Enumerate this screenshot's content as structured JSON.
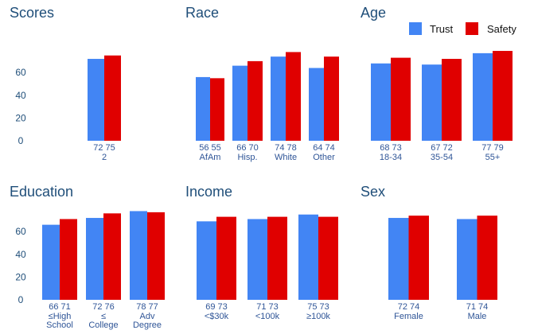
{
  "colors": {
    "trust": "#4285f4",
    "safety": "#e00000",
    "text": "#1f4e79"
  },
  "legend": {
    "items": [
      "Trust",
      "Safety"
    ],
    "placement": "top-right"
  },
  "chart_data": [
    {
      "type": "bar",
      "title": "Scores",
      "categories": [
        "2"
      ],
      "series": [
        {
          "name": "Trust",
          "values": [
            72
          ]
        },
        {
          "name": "Safety",
          "values": [
            75
          ]
        }
      ],
      "ylim": [
        0,
        80
      ],
      "yticks": [
        0,
        20,
        40,
        60
      ]
    },
    {
      "type": "bar",
      "title": "Race",
      "categories": [
        "AfAm",
        "Hisp.",
        "White",
        "Other"
      ],
      "series": [
        {
          "name": "Trust",
          "values": [
            56,
            66,
            74,
            64
          ]
        },
        {
          "name": "Safety",
          "values": [
            55,
            70,
            78,
            74
          ]
        }
      ],
      "ylim": [
        0,
        80
      ]
    },
    {
      "type": "bar",
      "title": "Age",
      "categories": [
        "18-34",
        "35-54",
        "55+"
      ],
      "series": [
        {
          "name": "Trust",
          "values": [
            68,
            67,
            77
          ]
        },
        {
          "name": "Safety",
          "values": [
            73,
            72,
            79
          ]
        }
      ],
      "ylim": [
        0,
        80
      ]
    },
    {
      "type": "bar",
      "title": "Education",
      "categories": [
        "≤High School",
        "≤ College",
        "Adv Degree"
      ],
      "series": [
        {
          "name": "Trust",
          "values": [
            66,
            72,
            78
          ]
        },
        {
          "name": "Safety",
          "values": [
            71,
            76,
            77
          ]
        }
      ],
      "ylim": [
        0,
        80
      ],
      "yticks": [
        0,
        20,
        40,
        60
      ]
    },
    {
      "type": "bar",
      "title": "Income",
      "categories": [
        "<$30k",
        "<100k",
        "≥100k"
      ],
      "series": [
        {
          "name": "Trust",
          "values": [
            69,
            71,
            75
          ]
        },
        {
          "name": "Safety",
          "values": [
            73,
            73,
            73
          ]
        }
      ],
      "ylim": [
        0,
        80
      ]
    },
    {
      "type": "bar",
      "title": "Sex",
      "categories": [
        "Female",
        "Male"
      ],
      "series": [
        {
          "name": "Trust",
          "values": [
            72,
            71
          ]
        },
        {
          "name": "Safety",
          "values": [
            74,
            74
          ]
        }
      ],
      "ylim": [
        0,
        80
      ]
    }
  ]
}
